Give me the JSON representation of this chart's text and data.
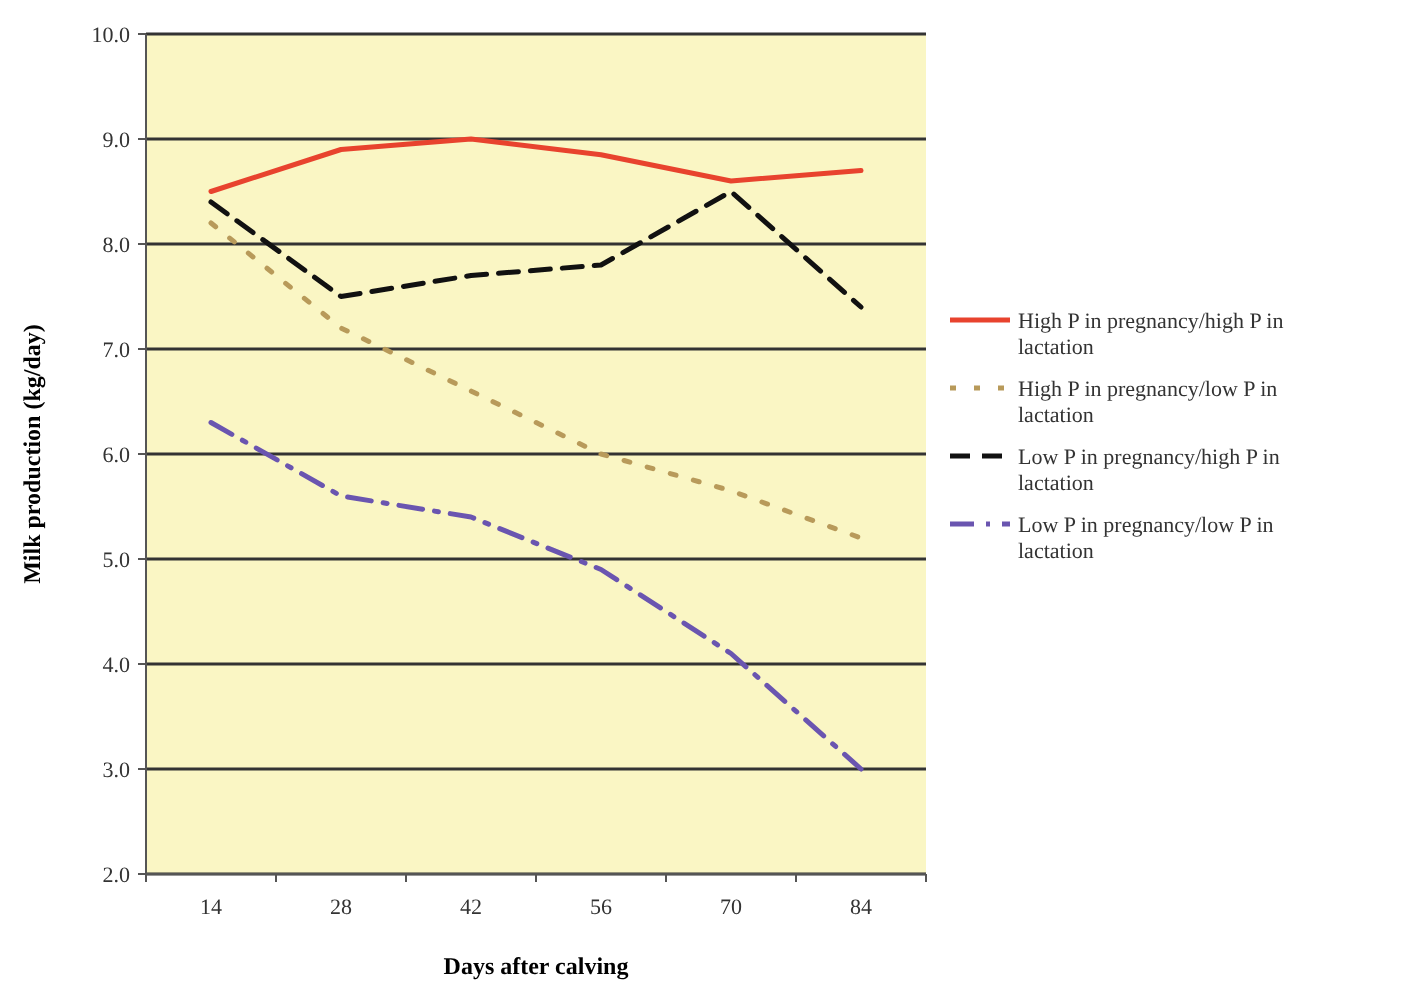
{
  "chart_data": {
    "type": "line",
    "xlabel": "Days after calving",
    "ylabel": "Milk production (kg/day)",
    "categories": [
      "14",
      "28",
      "42",
      "56",
      "70",
      "84"
    ],
    "ylim": [
      2,
      10
    ],
    "yticks": [
      {
        "value": 2,
        "label": "2.0"
      },
      {
        "value": 3,
        "label": "3.0"
      },
      {
        "value": 4,
        "label": "4.0"
      },
      {
        "value": 5,
        "label": "5.0"
      },
      {
        "value": 6,
        "label": "6.0"
      },
      {
        "value": 7,
        "label": "7.0"
      },
      {
        "value": 8,
        "label": "8.0"
      },
      {
        "value": 9,
        "label": "9.0"
      },
      {
        "value": 10,
        "label": "10.0"
      }
    ],
    "grid": "y",
    "legend": "right",
    "marker": "none",
    "series": [
      {
        "name": "High P in pregnancy/high P in lactation",
        "color": "#e8432e",
        "line_style": "solid",
        "values": [
          8.5,
          8.9,
          9.0,
          8.85,
          8.6,
          8.7
        ]
      },
      {
        "name": "High P in pregnancy/low P in lactation",
        "color": "#b89a5a",
        "line_style": "dotted",
        "values": [
          8.2,
          7.2,
          6.6,
          6.0,
          5.65,
          5.2
        ]
      },
      {
        "name": "Low P in pregnancy/high P in lactation",
        "color": "#111111",
        "line_style": "dashed",
        "values": [
          8.4,
          7.5,
          7.7,
          7.8,
          8.5,
          7.4
        ]
      },
      {
        "name": "Low P in pregnancy/low P in lactation",
        "color": "#6a55b0",
        "line_style": "dashdot",
        "values": [
          6.3,
          5.6,
          5.4,
          4.9,
          4.1,
          3.0
        ]
      }
    ]
  }
}
